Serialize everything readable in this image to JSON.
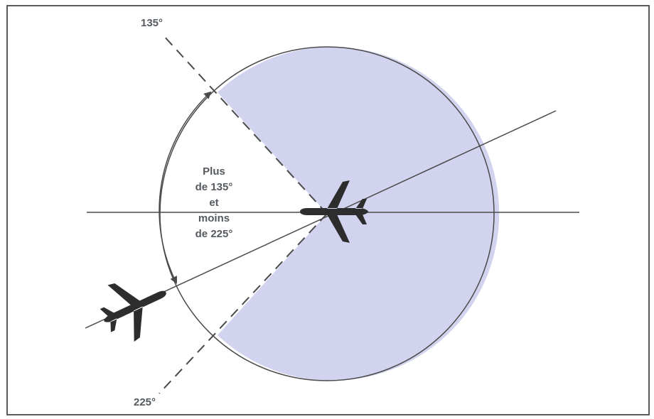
{
  "labels": {
    "angle_top": "135°",
    "angle_bottom": "225°",
    "sector_lines": [
      "Plus",
      "de 135°",
      "et",
      "moins",
      "de 225°"
    ]
  },
  "colors": {
    "sector_fill": "#d2d4ef",
    "line": "#4a4a4a",
    "aircraft": "#2d2d2d",
    "frame": "#5a5a5a"
  },
  "icons": {
    "aircraft_center": "airplane-icon",
    "aircraft_overtaking": "airplane-icon"
  }
}
